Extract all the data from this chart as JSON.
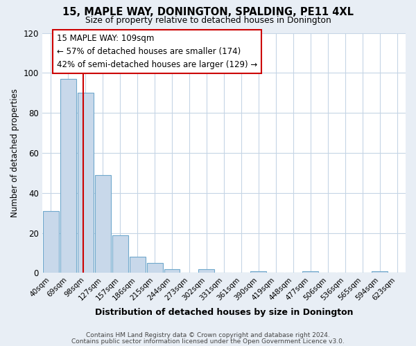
{
  "title": "15, MAPLE WAY, DONINGTON, SPALDING, PE11 4XL",
  "subtitle": "Size of property relative to detached houses in Donington",
  "xlabel": "Distribution of detached houses by size in Donington",
  "ylabel": "Number of detached properties",
  "bin_labels": [
    "40sqm",
    "69sqm",
    "98sqm",
    "127sqm",
    "157sqm",
    "186sqm",
    "215sqm",
    "244sqm",
    "273sqm",
    "302sqm",
    "331sqm",
    "361sqm",
    "390sqm",
    "419sqm",
    "448sqm",
    "477sqm",
    "506sqm",
    "536sqm",
    "565sqm",
    "594sqm",
    "623sqm"
  ],
  "bar_values": [
    31,
    97,
    90,
    49,
    19,
    8,
    5,
    2,
    0,
    2,
    0,
    0,
    1,
    0,
    0,
    1,
    0,
    0,
    0,
    1,
    0
  ],
  "bar_color": "#c8d8ea",
  "bar_edge_color": "#6fa8cc",
  "marker_line_color": "#cc0000",
  "annotation_title": "15 MAPLE WAY: 109sqm",
  "annotation_line1": "← 57% of detached houses are smaller (174)",
  "annotation_line2": "42% of semi-detached houses are larger (129) →",
  "annotation_box_edge_color": "#cc0000",
  "ylim": [
    0,
    120
  ],
  "yticks": [
    0,
    20,
    40,
    60,
    80,
    100,
    120
  ],
  "footer1": "Contains HM Land Registry data © Crown copyright and database right 2024.",
  "footer2": "Contains public sector information licensed under the Open Government Licence v3.0.",
  "bg_color": "#e8eef5",
  "plot_bg_color": "#ffffff",
  "grid_color": "#c5d5e5"
}
